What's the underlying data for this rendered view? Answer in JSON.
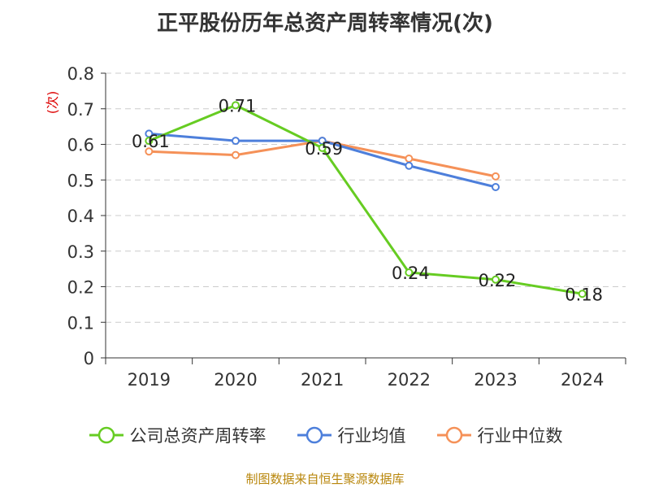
{
  "chart_data": {
    "type": "line",
    "title": "正平股份历年总资产周转率情况(次)",
    "ylabel": "(次)",
    "xlabel": "",
    "categories": [
      "2019",
      "2020",
      "2021",
      "2022",
      "2023",
      "2024"
    ],
    "ylim": [
      0,
      0.8
    ],
    "yticks": [
      "0",
      "0.1",
      "0.2",
      "0.3",
      "0.4",
      "0.5",
      "0.6",
      "0.7",
      "0.8"
    ],
    "grid": true,
    "legend_position": "bottom",
    "series": [
      {
        "name": "公司总资产周转率",
        "color": "#66cc22",
        "values": [
          0.61,
          0.71,
          0.59,
          0.24,
          0.22,
          0.18
        ],
        "labels": [
          "0.61",
          "0.71",
          "0.59",
          "0.24",
          "0.22",
          "0.18"
        ]
      },
      {
        "name": "行业均值",
        "color": "#4d7fdb",
        "values": [
          0.63,
          0.61,
          0.61,
          0.54,
          0.48,
          null
        ]
      },
      {
        "name": "行业中位数",
        "color": "#f59158",
        "values": [
          0.58,
          0.57,
          0.61,
          0.56,
          0.51,
          null
        ]
      }
    ]
  },
  "source": "制图数据来自恒生聚源数据库"
}
